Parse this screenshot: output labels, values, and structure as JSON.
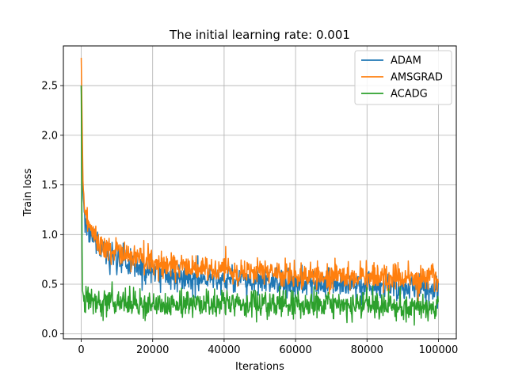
{
  "chart_data": {
    "type": "line",
    "title": "The initial learning rate: 0.001",
    "xlabel": "Iterations",
    "ylabel": "Train loss",
    "xlim": [
      -5000,
      105000
    ],
    "ylim": [
      -0.05,
      2.9
    ],
    "xticks": [
      0,
      20000,
      40000,
      60000,
      80000,
      100000
    ],
    "xtick_labels": [
      "0",
      "20000",
      "40000",
      "60000",
      "80000",
      "100000"
    ],
    "yticks": [
      0.0,
      0.5,
      1.0,
      1.5,
      2.0,
      2.5
    ],
    "ytick_labels": [
      "0.0",
      "0.5",
      "1.0",
      "1.5",
      "2.0",
      "2.5"
    ],
    "grid": true,
    "legend_position": "top-right",
    "series": [
      {
        "name": "ADAM",
        "color": "#1f77b4",
        "x": [
          0,
          500,
          1000,
          2000,
          3000,
          5000,
          7500,
          10000,
          15000,
          20000,
          25000,
          30000,
          40000,
          50000,
          60000,
          70000,
          80000,
          90000,
          100000
        ],
        "y": [
          2.5,
          1.4,
          1.2,
          1.05,
          0.98,
          0.88,
          0.8,
          0.74,
          0.68,
          0.64,
          0.6,
          0.57,
          0.54,
          0.52,
          0.5,
          0.48,
          0.47,
          0.46,
          0.45
        ],
        "noise": 0.07
      },
      {
        "name": "AMSGRAD",
        "color": "#ff7f0e",
        "x": [
          0,
          500,
          1000,
          2000,
          3000,
          5000,
          7500,
          10000,
          15000,
          20000,
          25000,
          30000,
          40000,
          50000,
          60000,
          70000,
          80000,
          90000,
          100000
        ],
        "y": [
          2.78,
          1.5,
          1.25,
          1.1,
          1.02,
          0.93,
          0.86,
          0.81,
          0.76,
          0.72,
          0.69,
          0.67,
          0.64,
          0.61,
          0.59,
          0.58,
          0.57,
          0.56,
          0.55
        ],
        "noise": 0.07
      },
      {
        "name": "ACADG",
        "color": "#2ca02c",
        "x": [
          0,
          300,
          800,
          2000,
          5000,
          10000,
          20000,
          30000,
          40000,
          50000,
          60000,
          70000,
          80000,
          90000,
          100000
        ],
        "y": [
          2.5,
          0.45,
          0.34,
          0.33,
          0.32,
          0.31,
          0.31,
          0.3,
          0.3,
          0.29,
          0.29,
          0.28,
          0.28,
          0.27,
          0.27
        ],
        "noise": 0.07
      }
    ]
  }
}
